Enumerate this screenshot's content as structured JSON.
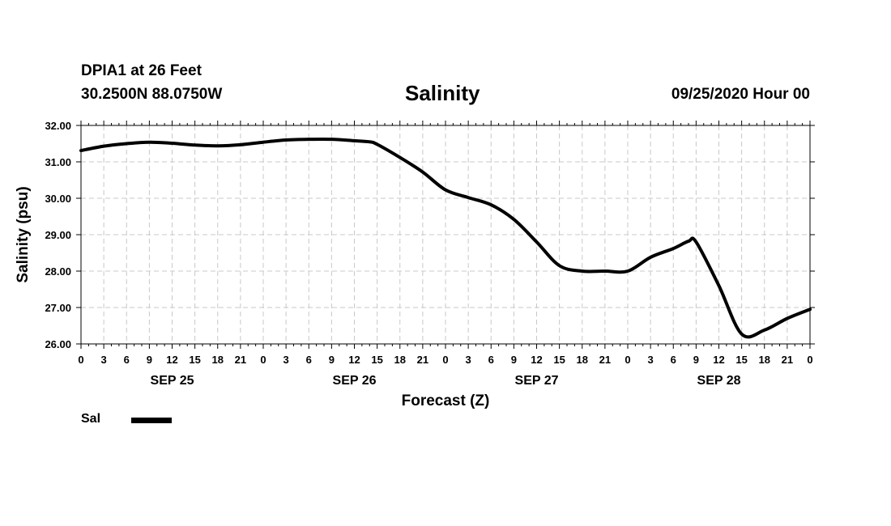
{
  "header": {
    "station": "DPIA1 at 26 Feet",
    "coords": "30.2500N 88.0750W",
    "title": "Salinity",
    "run": "09/25/2020 Hour 00"
  },
  "legend": {
    "label": "Sal"
  },
  "chart_data": {
    "type": "line",
    "title": "Salinity",
    "xlabel": "Forecast (Z)",
    "ylabel": "Salinity (psu)",
    "ylim": [
      26.0,
      32.0
    ],
    "yticks": [
      "26.00",
      "27.00",
      "28.00",
      "29.00",
      "30.00",
      "31.00",
      "32.00"
    ],
    "xlim_hours": [
      0,
      96
    ],
    "xtick_labels": [
      "0",
      "3",
      "6",
      "9",
      "12",
      "15",
      "18",
      "21",
      "0",
      "3",
      "6",
      "9",
      "12",
      "15",
      "18",
      "21",
      "0",
      "3",
      "6",
      "9",
      "12",
      "15",
      "18",
      "21",
      "0",
      "3",
      "6",
      "9",
      "12",
      "15",
      "18",
      "21",
      "0"
    ],
    "day_labels": [
      {
        "label": "SEP 25",
        "hour": 12
      },
      {
        "label": "SEP 26",
        "hour": 36
      },
      {
        "label": "SEP 27",
        "hour": 60
      },
      {
        "label": "SEP 28",
        "hour": 84
      }
    ],
    "grid": true,
    "legend_position": "bottom-left",
    "series": [
      {
        "name": "Sal",
        "color": "#000000",
        "x_hours": [
          0,
          3,
          6,
          9,
          12,
          15,
          18,
          21,
          24,
          27,
          30,
          33,
          36,
          38,
          39,
          42,
          45,
          48,
          51,
          54,
          57,
          60,
          63,
          66,
          69,
          72,
          75,
          78,
          80,
          81,
          84,
          87,
          90,
          93,
          96
        ],
        "values": [
          31.31,
          31.43,
          31.5,
          31.54,
          31.51,
          31.46,
          31.44,
          31.47,
          31.54,
          31.6,
          31.62,
          31.62,
          31.58,
          31.55,
          31.48,
          31.12,
          30.72,
          30.23,
          30.02,
          29.82,
          29.42,
          28.8,
          28.15,
          28.0,
          28.0,
          28.0,
          28.38,
          28.62,
          28.82,
          28.8,
          27.6,
          26.27,
          26.38,
          26.7,
          26.95
        ]
      }
    ]
  }
}
